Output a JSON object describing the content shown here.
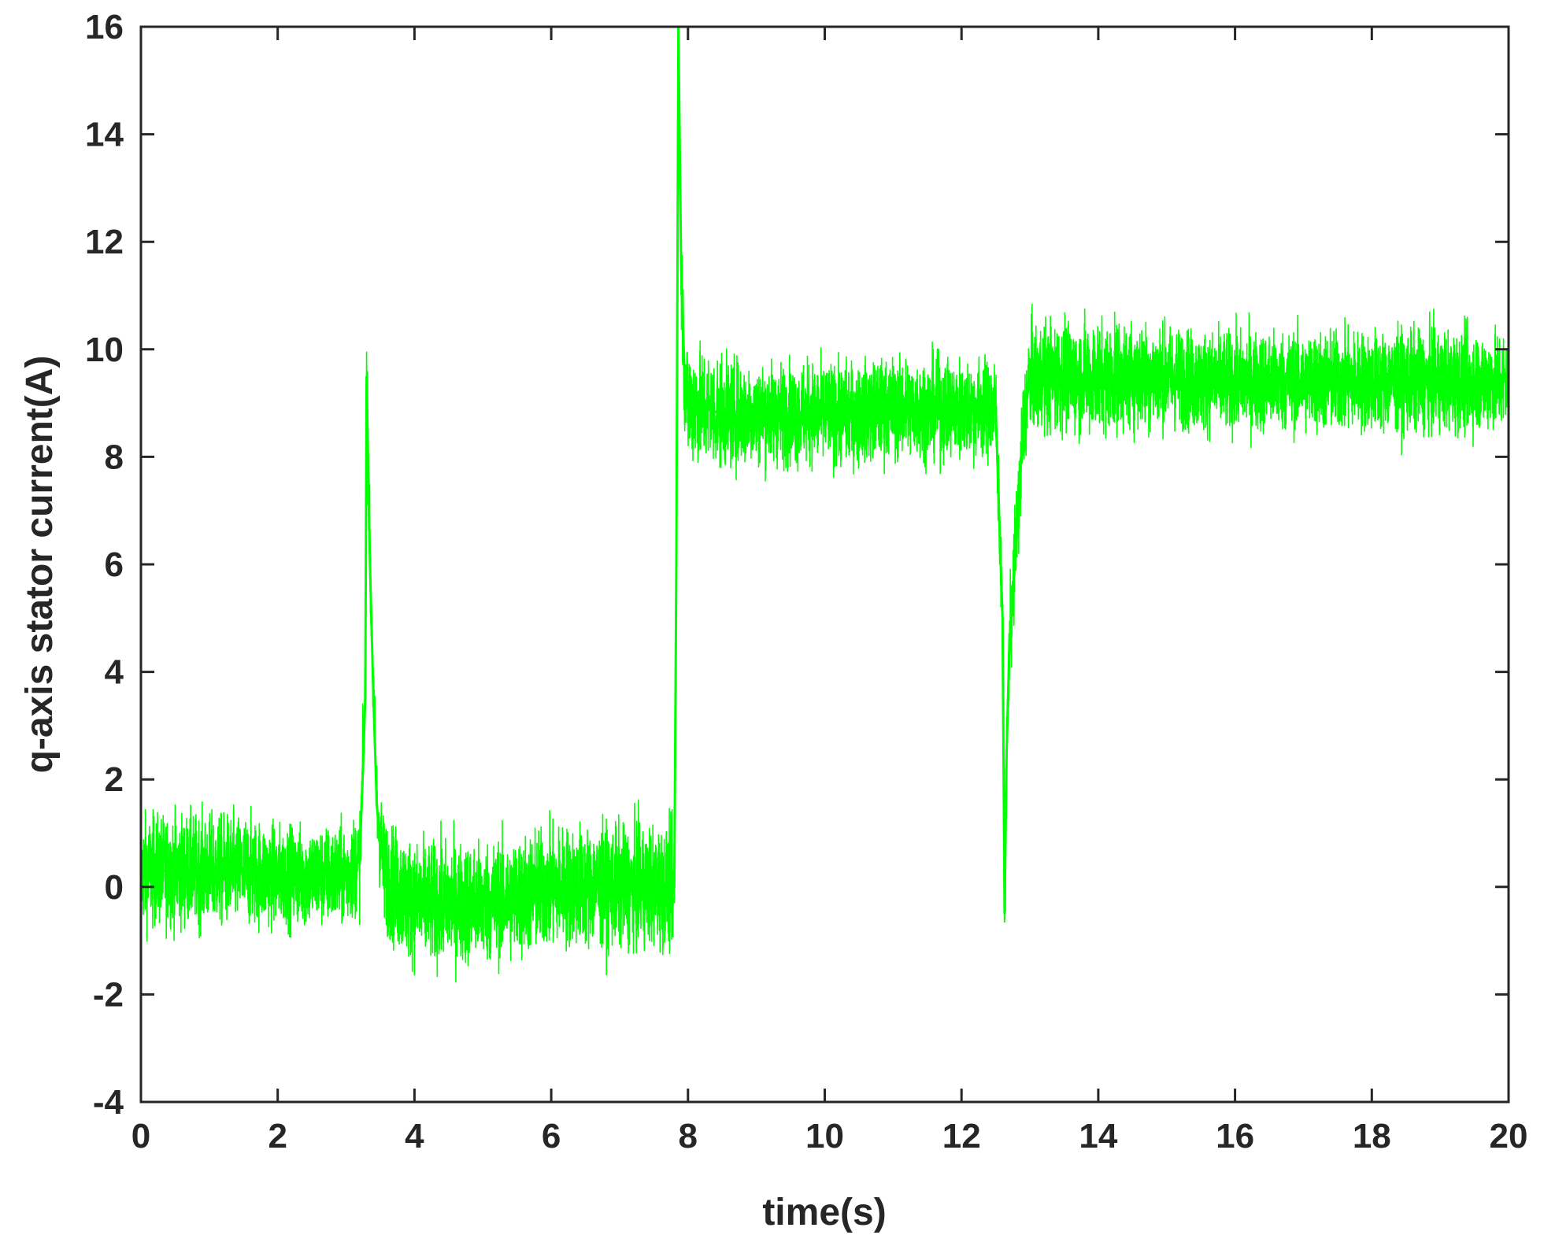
{
  "chart_data": {
    "type": "line",
    "xlabel": "time(s)",
    "ylabel": "q-axis stator current(A)",
    "xlim": [
      0,
      20
    ],
    "ylim": [
      -4,
      16
    ],
    "xticks": [
      "0",
      "2",
      "4",
      "6",
      "8",
      "10",
      "12",
      "14",
      "16",
      "18",
      "20"
    ],
    "yticks": [
      "-4",
      "-2",
      "0",
      "2",
      "4",
      "6",
      "8",
      "10",
      "12",
      "14",
      "16"
    ],
    "grid": false,
    "legend": "none",
    "series": [
      {
        "color": "#00ff00",
        "x": [
          0,
          0.5,
          1,
          1.5,
          2,
          2.5,
          3,
          3.2,
          3.28,
          3.3,
          3.35,
          3.4,
          3.45,
          3.55,
          3.7,
          4,
          4.5,
          5,
          5.5,
          6,
          6.5,
          7,
          7.5,
          7.8,
          7.83,
          7.86,
          7.9,
          7.95,
          8,
          8.5,
          9,
          9.5,
          10,
          10.5,
          11,
          11.5,
          12,
          12.5,
          12.6,
          12.63,
          12.66,
          12.7,
          12.8,
          12.9,
          13,
          13.5,
          14,
          14.5,
          15,
          15.5,
          16,
          16.5,
          17,
          17.5,
          18,
          18.5,
          19,
          19.5,
          20
        ],
        "y": [
          0.3,
          0.3,
          0.3,
          0.3,
          0.2,
          0.2,
          0.2,
          0.5,
          3.5,
          9.5,
          6.0,
          3.5,
          1.5,
          0.3,
          0,
          -0.3,
          -0.3,
          -0.3,
          -0.2,
          0,
          0,
          0,
          0,
          0,
          6.0,
          16.0,
          11.5,
          9.5,
          9.0,
          8.8,
          8.8,
          8.8,
          8.8,
          8.8,
          8.9,
          8.9,
          8.9,
          8.9,
          5.0,
          -0.5,
          2.5,
          4.5,
          6.5,
          8.5,
          9.5,
          9.5,
          9.5,
          9.5,
          9.5,
          9.4,
          9.4,
          9.4,
          9.4,
          9.4,
          9.4,
          9.4,
          9.4,
          9.4,
          9.4
        ],
        "noise_amplitude": [
          1.1,
          1.1,
          1.1,
          1.1,
          1.0,
          1.0,
          1.0,
          1.0,
          1.0,
          1.0,
          1.0,
          1.0,
          1.0,
          1.1,
          1.2,
          1.2,
          1.2,
          1.2,
          1.2,
          1.2,
          1.2,
          1.2,
          1.2,
          1.2,
          1.2,
          1.2,
          1.2,
          1.2,
          1.2,
          1.1,
          1.0,
          1.0,
          1.0,
          1.0,
          1.0,
          1.0,
          1.0,
          1.0,
          1.0,
          1.0,
          1.0,
          1.0,
          1.0,
          1.1,
          1.1,
          1.1,
          1.1,
          1.1,
          1.0,
          1.0,
          1.0,
          1.0,
          1.0,
          1.0,
          1.0,
          1.0,
          1.0,
          1.0,
          1.0
        ]
      }
    ]
  }
}
